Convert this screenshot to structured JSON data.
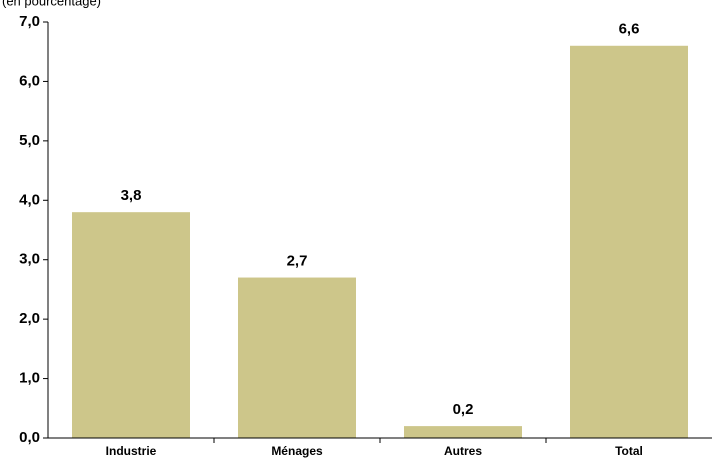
{
  "chart_data": {
    "type": "bar",
    "subtitle": "(en pourcentage)",
    "categories": [
      "Industrie",
      "Ménages",
      "Autres",
      "Total"
    ],
    "values": [
      3.8,
      2.7,
      0.2,
      6.6
    ],
    "value_labels": [
      "3,8",
      "2,7",
      "0,2",
      "6,6"
    ],
    "color": "#cdc68a",
    "ylim": [
      0,
      7
    ],
    "yticks": [
      {
        "value": 0,
        "label": "0,0"
      },
      {
        "value": 1,
        "label": "1,0"
      },
      {
        "value": 2,
        "label": "2,0"
      },
      {
        "value": 3,
        "label": "3,0"
      },
      {
        "value": 4,
        "label": "4,0"
      },
      {
        "value": 5,
        "label": "5,0"
      },
      {
        "value": 6,
        "label": "6,0"
      },
      {
        "value": 7,
        "label": "7,0"
      }
    ],
    "grid": false
  }
}
